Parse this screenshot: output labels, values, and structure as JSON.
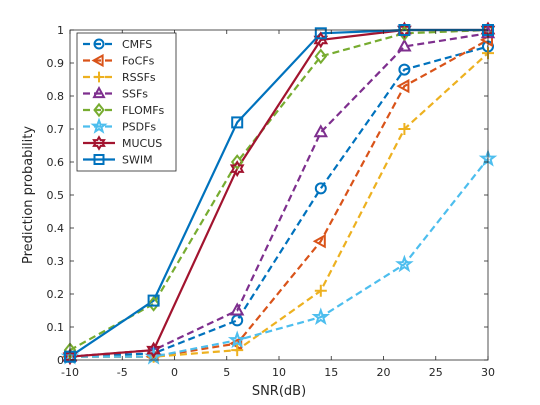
{
  "chart_data": {
    "type": "line",
    "xlabel": "SNR(dB)",
    "ylabel": "Prediction probability",
    "xlim": [
      -10,
      30
    ],
    "ylim": [
      0,
      1
    ],
    "xticks": [
      -10,
      -5,
      0,
      5,
      10,
      15,
      20,
      25,
      30
    ],
    "yticks": [
      0,
      0.1,
      0.2,
      0.3,
      0.4,
      0.5,
      0.6,
      0.7,
      0.8,
      0.9,
      1
    ],
    "xtick_labels": [
      "-10",
      "-5",
      "0",
      "5",
      "10",
      "15",
      "20",
      "25",
      "30"
    ],
    "ytick_labels": [
      "0",
      "0.1",
      "0.2",
      "0.3",
      "0.4",
      "0.5",
      "0.6",
      "0.7",
      "0.8",
      "0.9",
      "1"
    ],
    "grid": false,
    "legend_position": "top-left",
    "x": [
      -10,
      -2,
      6,
      14,
      22,
      30
    ],
    "series": [
      {
        "name": "CMFS",
        "values": [
          0.01,
          0.02,
          0.12,
          0.52,
          0.88,
          0.95
        ],
        "color": "#0072BD",
        "dash": "dashed",
        "marker": "circle"
      },
      {
        "name": "FoCFs",
        "values": [
          0.01,
          0.01,
          0.05,
          0.36,
          0.83,
          0.97
        ],
        "color": "#D95319",
        "dash": "dashed",
        "marker": "triangle-left"
      },
      {
        "name": "RSSFs",
        "values": [
          0.01,
          0.01,
          0.03,
          0.21,
          0.7,
          0.93
        ],
        "color": "#EDB120",
        "dash": "dashed",
        "marker": "plus"
      },
      {
        "name": "SSFs",
        "values": [
          0.01,
          0.03,
          0.15,
          0.69,
          0.95,
          0.99
        ],
        "color": "#7E2F8E",
        "dash": "dashed",
        "marker": "triangle-up"
      },
      {
        "name": "FLOMFs",
        "values": [
          0.03,
          0.17,
          0.6,
          0.92,
          0.99,
          1.0
        ],
        "color": "#77AC30",
        "dash": "dashed",
        "marker": "diamond"
      },
      {
        "name": "PSDFs",
        "values": [
          0.01,
          0.01,
          0.06,
          0.13,
          0.29,
          0.61
        ],
        "color": "#4DBEEE",
        "dash": "dashed",
        "marker": "pentagram"
      },
      {
        "name": "MUCUS",
        "values": [
          0.01,
          0.03,
          0.58,
          0.97,
          1.0,
          1.0
        ],
        "color": "#A2142F",
        "dash": "solid",
        "marker": "hexagram"
      },
      {
        "name": "SWIM",
        "values": [
          0.01,
          0.18,
          0.72,
          0.99,
          1.0,
          1.0
        ],
        "color": "#0072BD",
        "dash": "solid",
        "marker": "square"
      }
    ]
  }
}
